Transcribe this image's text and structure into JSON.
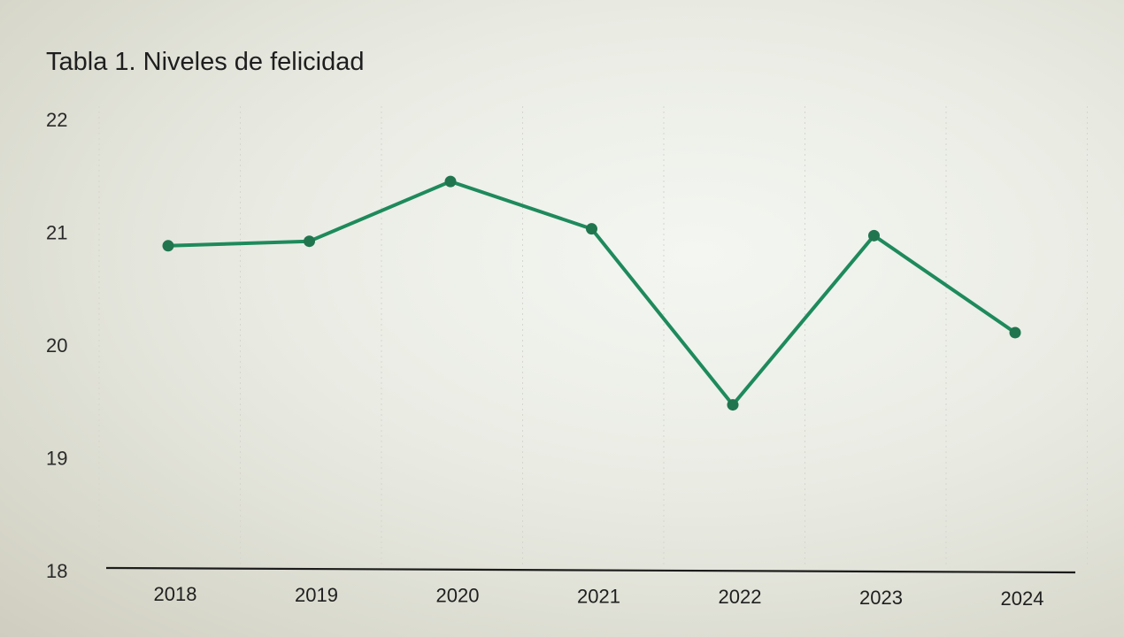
{
  "chart_data": {
    "type": "line",
    "title": "Tabla 1. Niveles de felicidad",
    "xlabel": "",
    "ylabel": "",
    "categories": [
      "2018",
      "2019",
      "2020",
      "2021",
      "2022",
      "2023",
      "2024"
    ],
    "series": [
      {
        "values": [
          20.88,
          20.92,
          21.45,
          21.03,
          19.47,
          20.97,
          20.11
        ]
      }
    ],
    "ylim": [
      18,
      22
    ],
    "yticks": [
      "18",
      "19",
      "20",
      "21",
      "22"
    ],
    "grid": "vertical dotted",
    "legend": "none",
    "colors": {
      "line": "#1e8a5c",
      "marker": "#20754f",
      "axis": "#1c1c1c"
    }
  }
}
